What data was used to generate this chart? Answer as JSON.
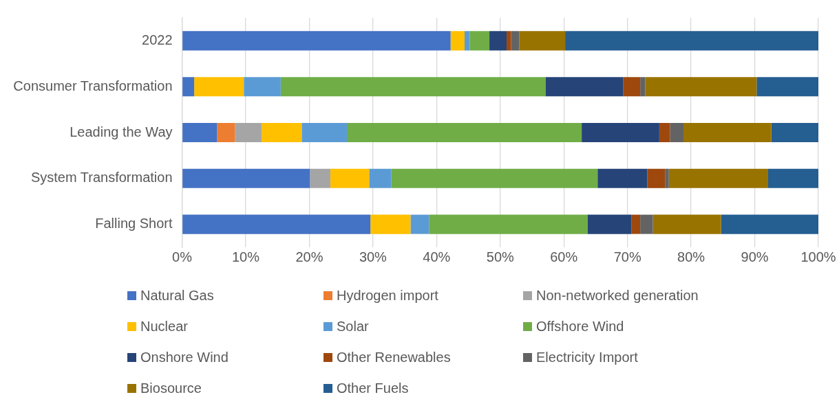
{
  "chart_data": {
    "type": "bar",
    "orientation": "horizontal",
    "stacked": true,
    "categories": [
      "2022",
      "Consumer Transformation",
      "Leading the Way",
      "System Transformation",
      "Falling Short"
    ],
    "series": [
      {
        "name": "Natural Gas",
        "color": "#4472c4",
        "values": [
          42.2,
          1.9,
          5.5,
          20.1,
          29.6
        ]
      },
      {
        "name": "Hydrogen import",
        "color": "#ed7d31",
        "values": [
          0,
          0,
          2.8,
          0,
          0
        ]
      },
      {
        "name": "Non-networked generation",
        "color": "#a5a5a5",
        "values": [
          0,
          0,
          4.2,
          3.2,
          0
        ]
      },
      {
        "name": "Nuclear",
        "color": "#ffc000",
        "values": [
          2.2,
          7.8,
          6.3,
          6.1,
          6.3
        ]
      },
      {
        "name": "Solar",
        "color": "#5b9bd5",
        "values": [
          0.8,
          5.8,
          7.1,
          3.5,
          2.9
        ]
      },
      {
        "name": "Offshore Wind",
        "color": "#70ad47",
        "values": [
          3.1,
          41.6,
          36.9,
          32.4,
          24.9
        ]
      },
      {
        "name": "Onshore Wind",
        "color": "#264478",
        "values": [
          2.7,
          12.2,
          12.2,
          7.8,
          6.9
        ]
      },
      {
        "name": "Other Renewables",
        "color": "#9e480e",
        "values": [
          0.7,
          2.7,
          1.7,
          2.8,
          1.4
        ]
      },
      {
        "name": "Electricity Import",
        "color": "#636363",
        "values": [
          1.3,
          0.8,
          2.1,
          0.6,
          2.0
        ]
      },
      {
        "name": "Biosource",
        "color": "#997300",
        "values": [
          7.2,
          17.5,
          13.8,
          15.6,
          10.7
        ]
      },
      {
        "name": "Other Fuels",
        "color": "#255e91",
        "values": [
          39.8,
          9.7,
          7.4,
          7.9,
          15.3
        ]
      }
    ],
    "xlim": [
      0,
      100
    ],
    "xticks": [
      {
        "value": 0,
        "label": "0%"
      },
      {
        "value": 10,
        "label": "10%"
      },
      {
        "value": 20,
        "label": "20%"
      },
      {
        "value": 30,
        "label": "30%"
      },
      {
        "value": 40,
        "label": "40%"
      },
      {
        "value": 50,
        "label": "50%"
      },
      {
        "value": 60,
        "label": "60%"
      },
      {
        "value": 70,
        "label": "70%"
      },
      {
        "value": 80,
        "label": "80%"
      },
      {
        "value": 90,
        "label": "90%"
      },
      {
        "value": 100,
        "label": "100%"
      }
    ],
    "grid": "x",
    "legend": "bottom"
  }
}
